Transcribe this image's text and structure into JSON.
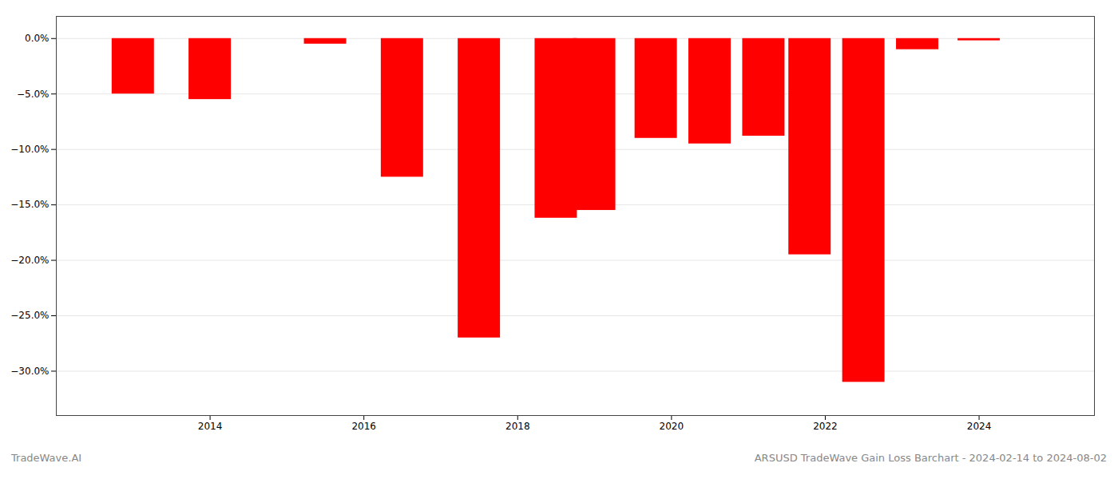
{
  "chart_data": {
    "type": "bar",
    "title": "ARSUSD TradeWave Gain Loss Barchart - 2024-02-14 to 2024-08-02",
    "annotations": [
      "TradeWave.AI"
    ],
    "x": [
      2013,
      2014,
      2015.5,
      2016.5,
      2017.5,
      2018.5,
      2019,
      2019.8,
      2020.5,
      2021.2,
      2021.8,
      2022.5,
      2023.2,
      2024
    ],
    "values": [
      -5.0,
      -5.5,
      -0.5,
      -12.5,
      -27.0,
      -16.2,
      -15.5,
      -9.0,
      -9.5,
      -8.8,
      -19.5,
      -31.0,
      -1.0,
      -0.2
    ],
    "color": "#ff0000",
    "xlim": [
      2012.0,
      2025.5
    ],
    "xticks": [
      2014,
      2016,
      2018,
      2020,
      2022,
      2024
    ],
    "ylim": [
      -34,
      2.0
    ],
    "yticks": [
      {
        "value": 0.0,
        "label": "0.0%"
      },
      {
        "value": -5.0,
        "label": "−5.0%"
      },
      {
        "value": -10.0,
        "label": "−10.0%"
      },
      {
        "value": -15.0,
        "label": "−15.0%"
      },
      {
        "value": -20.0,
        "label": "−20.0%"
      },
      {
        "value": -25.0,
        "label": "−25.0%"
      },
      {
        "value": -30.0,
        "label": "−30.0%"
      }
    ],
    "grid": true
  }
}
